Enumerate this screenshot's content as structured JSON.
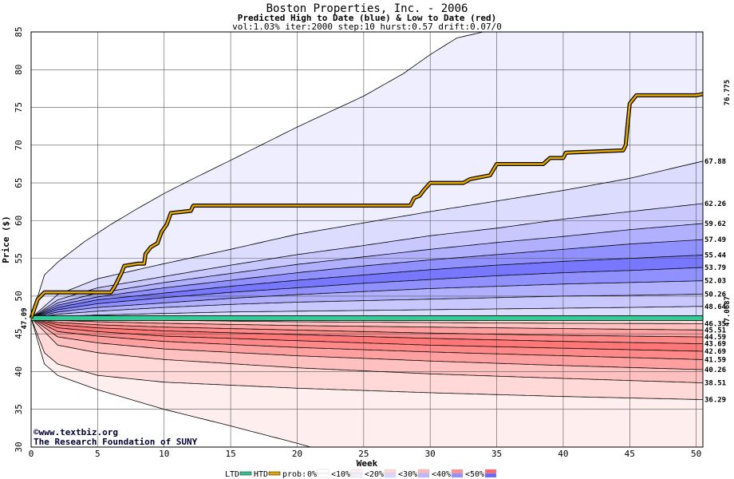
{
  "chart_data": {
    "type": "area",
    "title": "Boston Properties, Inc. - 2006",
    "subtitle": "Predicted High to Date (blue) &  Low to Date (red)",
    "params": "vol:1.03% iter:2000 step:10 hurst:0.57 drift:0.07/0",
    "xlabel": "Week",
    "ylabel": "Price ($)",
    "xlim": [
      0,
      50.5
    ],
    "ylim": [
      30,
      85
    ],
    "x_ticks": [
      0,
      5,
      10,
      15,
      20,
      25,
      30,
      35,
      40,
      45,
      50
    ],
    "y_ticks": [
      30,
      35,
      40,
      45,
      50,
      55,
      60,
      65,
      70,
      75,
      80,
      85
    ],
    "grid": true,
    "start_price": 47.09,
    "start_label": "47.09",
    "current_price": 47.0687,
    "current_label": "47.0687",
    "final_high_label": "76.775",
    "high_bands": [
      {
        "final": 85,
        "points": [
          [
            0,
            47.09
          ],
          [
            1,
            52.8
          ],
          [
            2,
            54.5
          ],
          [
            4,
            57.2
          ],
          [
            6,
            59.5
          ],
          [
            8,
            61.6
          ],
          [
            10,
            63.6
          ],
          [
            12,
            65.4
          ],
          [
            15,
            68
          ],
          [
            20,
            72.4
          ],
          [
            25,
            76.5
          ],
          [
            28,
            79.5
          ],
          [
            30,
            82
          ],
          [
            32,
            84.2
          ],
          [
            34,
            85
          ]
        ]
      },
      {
        "final": 67.88,
        "label": "67.88",
        "points": [
          [
            0,
            47.09
          ],
          [
            2,
            50.2
          ],
          [
            5,
            52.3
          ],
          [
            10,
            54.3
          ],
          [
            15,
            56.2
          ],
          [
            20,
            58.2
          ],
          [
            25,
            59.7
          ],
          [
            30,
            61.2
          ],
          [
            35,
            62.6
          ],
          [
            40,
            64
          ],
          [
            45,
            65.6
          ],
          [
            50.5,
            67.88
          ]
        ]
      },
      {
        "final": 62.26,
        "label": "62.26",
        "points": [
          [
            0,
            47.09
          ],
          [
            2,
            49.5
          ],
          [
            5,
            51.1
          ],
          [
            10,
            52.6
          ],
          [
            15,
            54.1
          ],
          [
            20,
            55.5
          ],
          [
            25,
            56.7
          ],
          [
            30,
            58
          ],
          [
            35,
            59
          ],
          [
            40,
            60.2
          ],
          [
            45,
            61.2
          ],
          [
            50.5,
            62.26
          ]
        ]
      },
      {
        "final": 59.62,
        "label": "59.62",
        "points": [
          [
            0,
            47.09
          ],
          [
            2,
            49.1
          ],
          [
            5,
            50.4
          ],
          [
            10,
            51.8
          ],
          [
            15,
            53
          ],
          [
            20,
            54.2
          ],
          [
            25,
            55.2
          ],
          [
            30,
            56.2
          ],
          [
            35,
            57.1
          ],
          [
            40,
            57.9
          ],
          [
            45,
            58.8
          ],
          [
            50.5,
            59.62
          ]
        ]
      },
      {
        "final": 57.49,
        "label": "57.49",
        "points": [
          [
            0,
            47.09
          ],
          [
            2,
            48.8
          ],
          [
            5,
            49.9
          ],
          [
            10,
            51.1
          ],
          [
            15,
            52.1
          ],
          [
            20,
            53.1
          ],
          [
            25,
            54
          ],
          [
            30,
            54.8
          ],
          [
            35,
            55.5
          ],
          [
            40,
            56.2
          ],
          [
            45,
            56.9
          ],
          [
            50.5,
            57.49
          ]
        ]
      },
      {
        "final": 55.44,
        "label": "55.44",
        "points": [
          [
            0,
            47.09
          ],
          [
            2,
            48.5
          ],
          [
            5,
            49.5
          ],
          [
            10,
            50.4
          ],
          [
            15,
            51.3
          ],
          [
            20,
            52.1
          ],
          [
            25,
            52.8
          ],
          [
            30,
            53.5
          ],
          [
            35,
            54.1
          ],
          [
            40,
            54.6
          ],
          [
            45,
            55
          ],
          [
            50.5,
            55.44
          ]
        ]
      },
      {
        "final": 53.79,
        "label": "53.79",
        "points": [
          [
            0,
            47.09
          ],
          [
            2,
            48.2
          ],
          [
            5,
            49
          ],
          [
            10,
            49.8
          ],
          [
            15,
            50.5
          ],
          [
            20,
            51.1
          ],
          [
            25,
            51.7
          ],
          [
            30,
            52.2
          ],
          [
            35,
            52.7
          ],
          [
            40,
            53.1
          ],
          [
            45,
            53.4
          ],
          [
            50.5,
            53.79
          ]
        ]
      },
      {
        "final": 52.03,
        "label": "52.03",
        "points": [
          [
            0,
            47.09
          ],
          [
            2,
            47.9
          ],
          [
            5,
            48.5
          ],
          [
            10,
            49.1
          ],
          [
            15,
            49.7
          ],
          [
            20,
            50.2
          ],
          [
            25,
            50.6
          ],
          [
            30,
            51
          ],
          [
            35,
            51.3
          ],
          [
            40,
            51.6
          ],
          [
            45,
            51.8
          ],
          [
            50.5,
            52.03
          ]
        ]
      },
      {
        "final": 50.26,
        "label": "50.26",
        "points": [
          [
            0,
            47.09
          ],
          [
            2,
            47.6
          ],
          [
            5,
            48
          ],
          [
            10,
            48.5
          ],
          [
            15,
            48.9
          ],
          [
            20,
            49.2
          ],
          [
            25,
            49.4
          ],
          [
            30,
            49.6
          ],
          [
            35,
            49.8
          ],
          [
            40,
            50
          ],
          [
            45,
            50.1
          ],
          [
            50.5,
            50.26
          ]
        ]
      },
      {
        "final": 48.64,
        "label": "48.64",
        "points": [
          [
            0,
            47.09
          ],
          [
            2,
            47.3
          ],
          [
            5,
            47.5
          ],
          [
            10,
            47.7
          ],
          [
            15,
            47.9
          ],
          [
            20,
            48
          ],
          [
            25,
            48.1
          ],
          [
            30,
            48.2
          ],
          [
            35,
            48.3
          ],
          [
            40,
            48.4
          ],
          [
            45,
            48.5
          ],
          [
            50.5,
            48.64
          ]
        ]
      }
    ],
    "low_bands": [
      {
        "final": 46.35,
        "label": "46.35",
        "points": [
          [
            0,
            47.09
          ],
          [
            5,
            46.9
          ],
          [
            10,
            46.8
          ],
          [
            20,
            46.6
          ],
          [
            30,
            46.5
          ],
          [
            40,
            46.4
          ],
          [
            50.5,
            46.35
          ]
        ]
      },
      {
        "final": 45.51,
        "label": "45.51",
        "points": [
          [
            0,
            47.09
          ],
          [
            2,
            46.8
          ],
          [
            5,
            46.6
          ],
          [
            10,
            46.4
          ],
          [
            20,
            46.1
          ],
          [
            30,
            45.9
          ],
          [
            40,
            45.7
          ],
          [
            50.5,
            45.51
          ]
        ]
      },
      {
        "final": 44.59,
        "label": "44.59",
        "points": [
          [
            0,
            47.09
          ],
          [
            2,
            46.5
          ],
          [
            5,
            46.2
          ],
          [
            10,
            45.9
          ],
          [
            20,
            45.5
          ],
          [
            30,
            45.1
          ],
          [
            40,
            44.8
          ],
          [
            50.5,
            44.59
          ]
        ]
      },
      {
        "final": 43.69,
        "label": "43.69",
        "points": [
          [
            0,
            47.09
          ],
          [
            2,
            46.2
          ],
          [
            5,
            45.8
          ],
          [
            10,
            45.4
          ],
          [
            20,
            44.9
          ],
          [
            30,
            44.4
          ],
          [
            40,
            44
          ],
          [
            50.5,
            43.69
          ]
        ]
      },
      {
        "final": 42.69,
        "label": "42.69",
        "points": [
          [
            0,
            47.09
          ],
          [
            2,
            45.8
          ],
          [
            5,
            45.3
          ],
          [
            10,
            44.7
          ],
          [
            20,
            44.1
          ],
          [
            30,
            43.5
          ],
          [
            40,
            43.1
          ],
          [
            50.5,
            42.69
          ]
        ]
      },
      {
        "final": 41.59,
        "label": "41.59",
        "points": [
          [
            0,
            47.09
          ],
          [
            2,
            45.3
          ],
          [
            5,
            44.7
          ],
          [
            10,
            44
          ],
          [
            20,
            43.2
          ],
          [
            30,
            42.6
          ],
          [
            40,
            42.1
          ],
          [
            50.5,
            41.59
          ]
        ]
      },
      {
        "final": 40.26,
        "label": "40.26",
        "points": [
          [
            0,
            47.09
          ],
          [
            2,
            44.6
          ],
          [
            5,
            43.8
          ],
          [
            10,
            43
          ],
          [
            20,
            42.1
          ],
          [
            30,
            41.4
          ],
          [
            40,
            40.8
          ],
          [
            50.5,
            40.26
          ]
        ]
      },
      {
        "final": 38.51,
        "label": "38.51",
        "points": [
          [
            0,
            47.09
          ],
          [
            2,
            43.5
          ],
          [
            5,
            42.5
          ],
          [
            10,
            41.6
          ],
          [
            20,
            40.5
          ],
          [
            30,
            39.7
          ],
          [
            40,
            39.1
          ],
          [
            50.5,
            38.51
          ]
        ]
      },
      {
        "final": 36.29,
        "label": "36.29",
        "points": [
          [
            0,
            47.09
          ],
          [
            1,
            42.5
          ],
          [
            2,
            41
          ],
          [
            5,
            39.5
          ],
          [
            10,
            38.6
          ],
          [
            20,
            37.8
          ],
          [
            30,
            37.2
          ],
          [
            40,
            36.7
          ],
          [
            50.5,
            36.29
          ]
        ]
      },
      {
        "final": 30,
        "points": [
          [
            0,
            47.09
          ],
          [
            1,
            41
          ],
          [
            2,
            39.5
          ],
          [
            5,
            37.6
          ],
          [
            10,
            35
          ],
          [
            15,
            32.8
          ],
          [
            20,
            30.5
          ],
          [
            21,
            30
          ]
        ]
      }
    ],
    "predicted_high_path": [
      [
        0,
        47.09
      ],
      [
        0.5,
        49.6
      ],
      [
        1,
        50.5
      ],
      [
        6,
        50.5
      ],
      [
        6.3,
        51.3
      ],
      [
        6.8,
        53.1
      ],
      [
        7,
        54
      ],
      [
        8,
        54.3
      ],
      [
        8.5,
        54.3
      ],
      [
        8.6,
        55.6
      ],
      [
        9,
        56.5
      ],
      [
        9.5,
        57
      ],
      [
        9.8,
        58.5
      ],
      [
        10.2,
        59.5
      ],
      [
        10.5,
        61
      ],
      [
        12,
        61.3
      ],
      [
        12.2,
        62
      ],
      [
        28.5,
        62
      ],
      [
        28.8,
        63
      ],
      [
        29.2,
        63.3
      ],
      [
        29.5,
        64
      ],
      [
        30,
        65
      ],
      [
        32.5,
        65
      ],
      [
        33,
        65.5
      ],
      [
        34.5,
        66
      ],
      [
        35,
        67.5
      ],
      [
        38.5,
        67.5
      ],
      [
        39,
        68.3
      ],
      [
        40,
        68.3
      ],
      [
        40.2,
        69
      ],
      [
        44.5,
        69.3
      ],
      [
        44.7,
        70
      ],
      [
        44.8,
        72
      ],
      [
        45,
        75.5
      ],
      [
        45.5,
        76.6
      ],
      [
        50,
        76.6
      ],
      [
        50.5,
        76.775
      ]
    ],
    "ltd_level": 47.09,
    "htd_level": 47.09,
    "low_fill_colors": [
      "#ffeeee",
      "#ffd8d8",
      "#ffc0c0",
      "#ffa0a0",
      "#ff8888",
      "#ff7777",
      "#ff8888",
      "#ffa0a0",
      "#ffc0c0",
      "#ffd8d8"
    ],
    "high_fill_colors": [
      "#eeeeff",
      "#dcdcff",
      "#c8c8ff",
      "#b0b0ff",
      "#9090ff",
      "#7777ff",
      "#9090ff",
      "#b0b0ff",
      "#c8c8ff",
      "#dcdcff"
    ],
    "credits": [
      "©www.textbiz.org",
      "The Research Foundation of SUNY"
    ],
    "legend": {
      "ltd": "LTD",
      "htd": "HTD",
      "prob": "prob:",
      "buckets": [
        "0%",
        "<10%",
        "<20%",
        "<30%",
        "<40%",
        "<50%"
      ],
      "colors": {
        "ltd": "#33cc99",
        "htd": "#e6a800",
        "buckets": [
          [
            "#ffffff",
            "#ffffff"
          ],
          [
            "#fff0f0",
            "#f0f0ff"
          ],
          [
            "#ffd8d8",
            "#d8d8ff"
          ],
          [
            "#ffb8b8",
            "#b8b8ff"
          ],
          [
            "#ff9090",
            "#9090ff"
          ],
          [
            "#ff6868",
            "#6868ff"
          ]
        ]
      }
    }
  }
}
